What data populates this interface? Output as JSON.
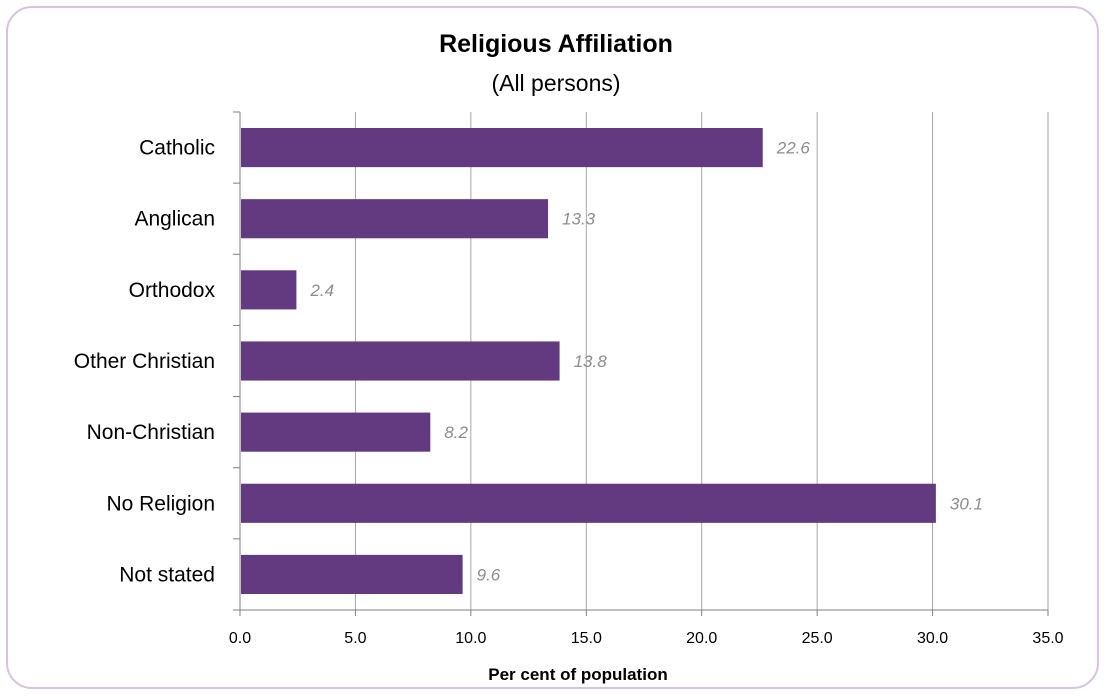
{
  "chart_data": {
    "type": "bar",
    "orientation": "horizontal",
    "title": "Religious Affiliation",
    "subtitle": "(All persons)",
    "xlabel": "Per cent of population",
    "ylabel": "",
    "categories": [
      "Catholic",
      "Anglican",
      "Orthodox",
      "Other Christian",
      "Non-Christian",
      "No Religion",
      "Not stated"
    ],
    "values": [
      22.6,
      13.3,
      2.4,
      13.8,
      8.2,
      30.1,
      9.6
    ],
    "value_labels": [
      "22.6",
      "13.3",
      "2.4",
      "13.8",
      "8.2",
      "30.1",
      "9.6"
    ],
    "xlim": [
      0,
      35
    ],
    "x_ticks": [
      0,
      5,
      10,
      15,
      20,
      25,
      30,
      35
    ],
    "x_tick_labels": [
      "0.0",
      "5.0",
      "10.0",
      "15.0",
      "20.0",
      "25.0",
      "30.0",
      "35.0"
    ],
    "grid": "vertical",
    "legend": "none",
    "bar_color": "#633a7f",
    "data_label_color": "#8c8c8c",
    "frame_color": "#d7c2df",
    "gridline_color": "#a6a6a6"
  }
}
